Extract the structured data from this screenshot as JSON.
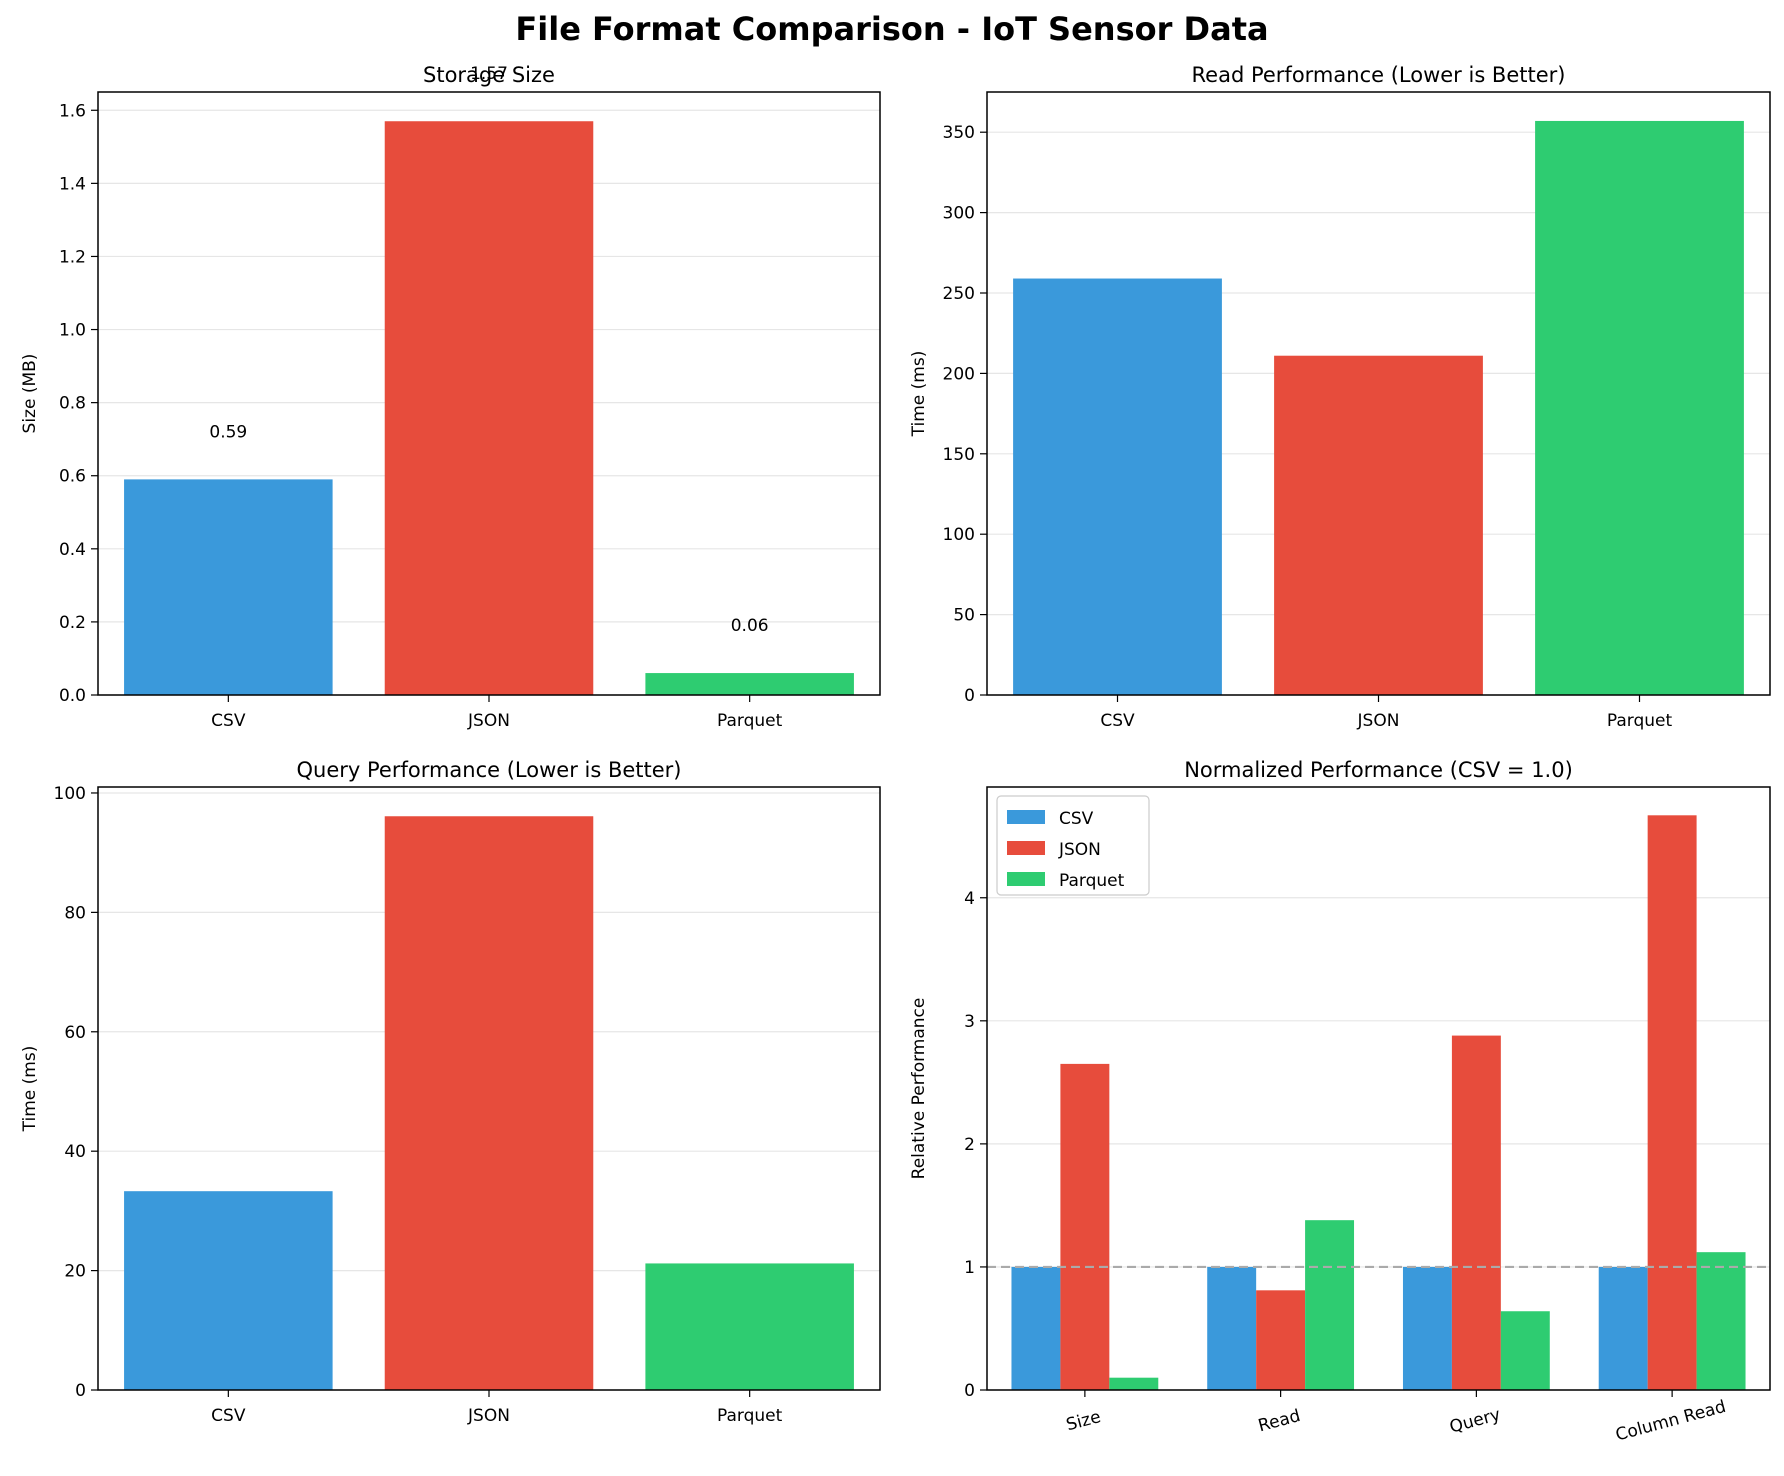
{
  "figure": {
    "title": "File Format Comparison - IoT Sensor Data"
  },
  "colors": {
    "CSV": "#3a99db",
    "JSON": "#e74c3c",
    "Parquet": "#2ecc71",
    "grid": "#e6e6e6",
    "reference_line": "#aaaaaa"
  },
  "chart_data": [
    {
      "type": "bar",
      "title": "Storage Size",
      "ylabel": "Size (MB)",
      "xlabel": "",
      "categories": [
        "CSV",
        "JSON",
        "Parquet"
      ],
      "values": [
        0.59,
        1.57,
        0.06
      ],
      "value_labels": [
        "0.59",
        "1.57",
        "0.06"
      ],
      "ylim": [
        0,
        1.65
      ],
      "yticks": [
        0.0,
        0.2,
        0.4,
        0.6,
        0.8,
        1.0,
        1.2,
        1.4,
        1.6
      ],
      "ytick_labels": [
        "0.0",
        "0.2",
        "0.4",
        "0.6",
        "0.8",
        "1.0",
        "1.2",
        "1.4",
        "1.6"
      ],
      "grid": "y"
    },
    {
      "type": "bar",
      "title": "Read Performance (Lower is Better)",
      "ylabel": "Time (ms)",
      "xlabel": "",
      "categories": [
        "CSV",
        "JSON",
        "Parquet"
      ],
      "values": [
        259,
        211,
        357
      ],
      "ylim": [
        0,
        375
      ],
      "yticks": [
        0,
        50,
        100,
        150,
        200,
        250,
        300,
        350
      ],
      "ytick_labels": [
        "0",
        "50",
        "100",
        "150",
        "200",
        "250",
        "300",
        "350"
      ],
      "grid": "y"
    },
    {
      "type": "bar",
      "title": "Query Performance (Lower is Better)",
      "ylabel": "Time (ms)",
      "xlabel": "",
      "categories": [
        "CSV",
        "JSON",
        "Parquet"
      ],
      "values": [
        33.3,
        96.1,
        21.2
      ],
      "ylim": [
        0,
        101
      ],
      "yticks": [
        0,
        20,
        40,
        60,
        80,
        100
      ],
      "ytick_labels": [
        "0",
        "20",
        "40",
        "60",
        "80",
        "100"
      ],
      "grid": "y"
    },
    {
      "type": "bar",
      "title": "Normalized Performance (CSV = 1.0)",
      "ylabel": "Relative Performance",
      "xlabel": "",
      "categories": [
        "Size",
        "Read",
        "Query",
        "Column Read"
      ],
      "series": [
        {
          "name": "CSV",
          "values": [
            1.0,
            1.0,
            1.0,
            1.0
          ]
        },
        {
          "name": "JSON",
          "values": [
            2.65,
            0.81,
            2.88,
            4.67
          ]
        },
        {
          "name": "Parquet",
          "values": [
            0.1,
            1.38,
            0.64,
            1.12
          ]
        }
      ],
      "reference_line": 1.0,
      "ylim": [
        0,
        4.9
      ],
      "yticks": [
        0,
        1,
        2,
        3,
        4
      ],
      "ytick_labels": [
        "0",
        "1",
        "2",
        "3",
        "4"
      ],
      "xtick_rotation": 15,
      "legend": "top-left",
      "grid": "y"
    }
  ]
}
